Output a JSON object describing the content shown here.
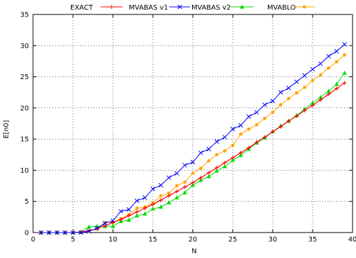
{
  "chart_data": {
    "type": "line",
    "title": "",
    "xlabel": "N",
    "ylabel": "E[n0]",
    "xlim": [
      0,
      40
    ],
    "ylim": [
      0,
      35
    ],
    "xticks": [
      0,
      5,
      10,
      15,
      20,
      25,
      30,
      35,
      40
    ],
    "yticks": [
      0,
      5,
      10,
      15,
      20,
      25,
      30,
      35
    ],
    "grid": true,
    "legend_position": "top",
    "series": [
      {
        "name": "EXACT",
        "color": "#ff0000",
        "marker": "plus",
        "x": [
          1,
          2,
          3,
          4,
          5,
          6,
          7,
          8,
          9,
          10,
          11,
          12,
          13,
          14,
          15,
          16,
          17,
          18,
          19,
          20,
          21,
          22,
          23,
          24,
          25,
          26,
          27,
          28,
          29,
          30,
          31,
          32,
          33,
          34,
          35,
          36,
          37,
          38,
          39
        ],
        "y": [
          0,
          0,
          0,
          0,
          0,
          0.1,
          0.3,
          0.6,
          1.1,
          1.6,
          2.1,
          2.7,
          3.3,
          3.9,
          4.5,
          5.2,
          5.9,
          6.6,
          7.3,
          8.0,
          8.8,
          9.6,
          10.4,
          11.2,
          12.0,
          12.8,
          13.6,
          14.5,
          15.3,
          16.2,
          17.0,
          17.9,
          18.7,
          19.6,
          20.4,
          21.3,
          22.2,
          23.1,
          24.0
        ]
      },
      {
        "name": "MVABAS v1",
        "color": "#ff0000",
        "marker": "none",
        "x": [
          1,
          2,
          3,
          4,
          5,
          6,
          7,
          8,
          9,
          10,
          11,
          12,
          13,
          14,
          15,
          16,
          17,
          18,
          19,
          20,
          21,
          22,
          23,
          24,
          25,
          26,
          27,
          28,
          29,
          30,
          31,
          32,
          33,
          34,
          35,
          36,
          37,
          38,
          39
        ],
        "y": [
          0,
          0,
          0,
          0,
          0,
          0.1,
          0.3,
          0.6,
          1.1,
          1.6,
          2.1,
          2.7,
          3.3,
          3.9,
          4.5,
          5.2,
          5.9,
          6.6,
          7.3,
          8.0,
          8.8,
          9.6,
          10.4,
          11.2,
          12.0,
          12.8,
          13.6,
          14.5,
          15.3,
          16.2,
          17.0,
          17.9,
          18.7,
          19.6,
          20.4,
          21.3,
          22.2,
          23.1,
          24.0
        ]
      },
      {
        "name": "MVABAS v2",
        "color": "#0000ff",
        "marker": "x",
        "x": [
          1,
          2,
          3,
          4,
          5,
          6,
          7,
          8,
          9,
          10,
          11,
          12,
          13,
          14,
          15,
          16,
          17,
          18,
          19,
          20,
          21,
          22,
          23,
          24,
          25,
          26,
          27,
          28,
          29,
          30,
          31,
          32,
          33,
          34,
          35,
          36,
          37,
          38,
          39
        ],
        "y": [
          0,
          0,
          0,
          0,
          0,
          0,
          0.2,
          0.7,
          1.5,
          1.9,
          3.4,
          3.7,
          5.1,
          5.6,
          7.0,
          7.6,
          8.8,
          9.5,
          10.8,
          11.3,
          12.8,
          13.4,
          14.6,
          15.3,
          16.6,
          17.2,
          18.6,
          19.3,
          20.5,
          21.1,
          22.5,
          23.2,
          24.2,
          25.2,
          26.2,
          27.1,
          28.3,
          29.1,
          30.2
        ]
      },
      {
        "name": "MVABLO",
        "color": "#00dd00",
        "marker": "triangle",
        "x": [
          1,
          2,
          3,
          4,
          5,
          6,
          7,
          8,
          9,
          10,
          11,
          12,
          13,
          14,
          15,
          16,
          17,
          18,
          19,
          20,
          21,
          22,
          23,
          24,
          25,
          26,
          27,
          28,
          29,
          30,
          31,
          32,
          33,
          34,
          35,
          36,
          37,
          38,
          39
        ],
        "y": [
          0,
          0,
          0,
          0,
          0,
          0.1,
          0.9,
          1.0,
          1.0,
          1.0,
          1.8,
          2.0,
          2.7,
          3.0,
          3.8,
          4.1,
          4.8,
          5.6,
          6.4,
          7.6,
          8.4,
          9.0,
          9.9,
          10.6,
          11.6,
          12.4,
          13.4,
          14.4,
          15.2,
          16.2,
          17.1,
          17.9,
          18.8,
          19.8,
          20.8,
          21.7,
          22.7,
          23.8,
          25.6
        ]
      },
      {
        "name": "",
        "color": "#ffa500",
        "marker": "circle",
        "x": [
          1,
          2,
          3,
          4,
          5,
          6,
          7,
          8,
          9,
          10,
          11,
          12,
          13,
          14,
          15,
          16,
          17,
          18,
          19,
          20,
          21,
          22,
          23,
          24,
          25,
          26,
          27,
          28,
          29,
          30,
          31,
          32,
          33,
          34,
          35,
          36,
          37,
          38,
          39
        ],
        "y": [
          0,
          0,
          0,
          0,
          0,
          0,
          0.2,
          0.6,
          1.6,
          1.6,
          2.2,
          2.9,
          3.9,
          4.1,
          4.8,
          5.9,
          6.3,
          7.5,
          8.1,
          9.5,
          10.3,
          11.5,
          12.5,
          13.1,
          14.0,
          15.8,
          16.6,
          17.3,
          18.3,
          19.3,
          20.5,
          21.5,
          22.4,
          23.3,
          24.4,
          25.3,
          26.4,
          27.4,
          28.5
        ]
      }
    ]
  }
}
